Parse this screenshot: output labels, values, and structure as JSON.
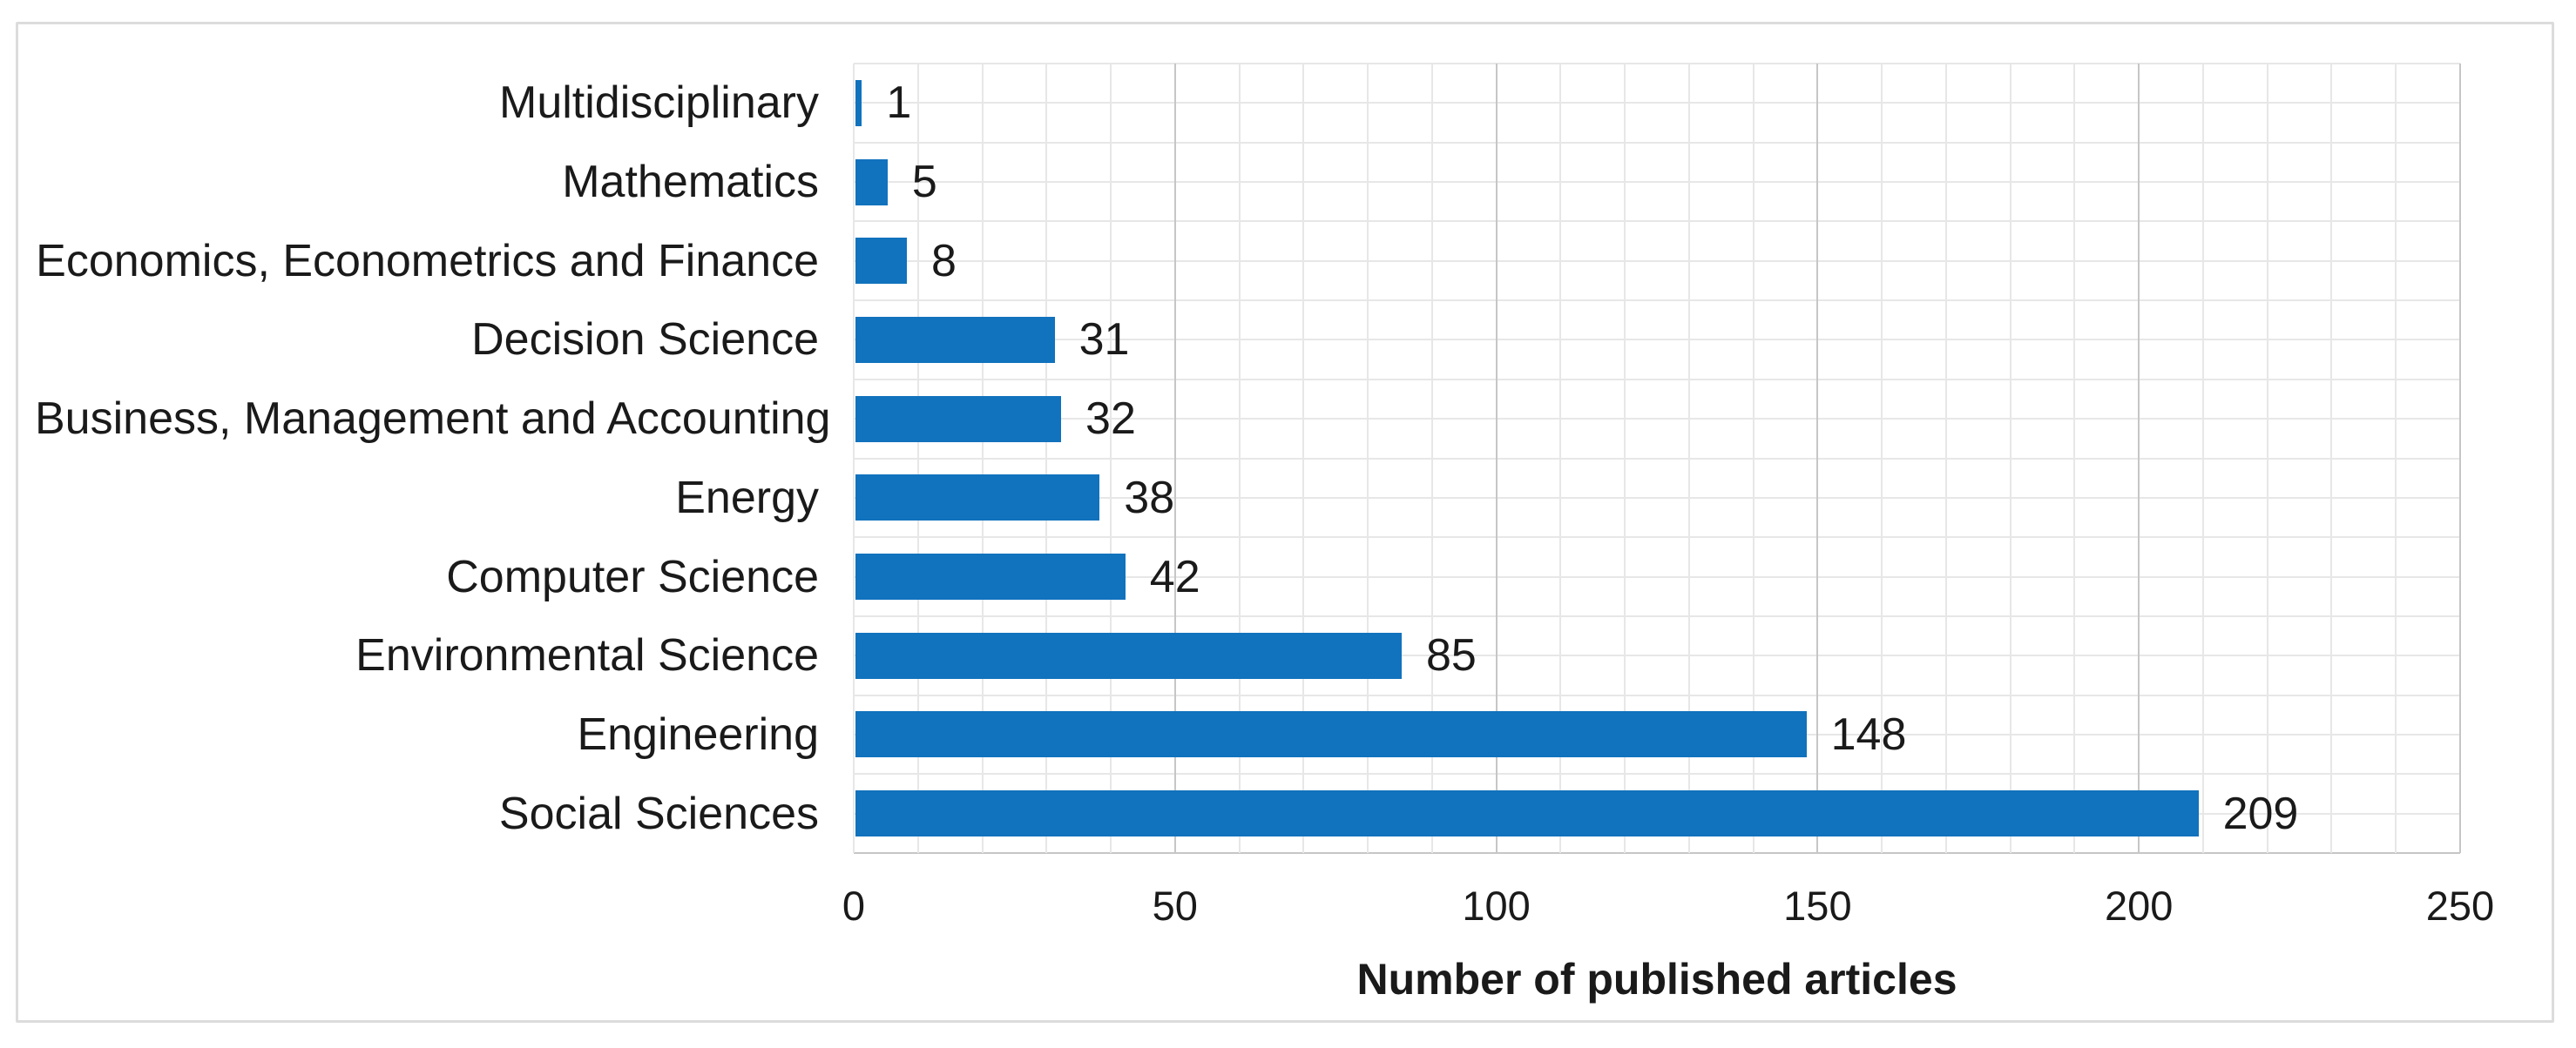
{
  "figure": {
    "background_color": "#ffffff",
    "border_color": "#dcdcdc"
  },
  "chart_data": {
    "type": "bar",
    "orientation": "horizontal",
    "title": "",
    "xlabel": "Number of published articles",
    "ylabel": "",
    "categories": [
      "Multidisciplinary",
      "Mathematics",
      "Economics, Econometrics and Finance",
      "Decision Science",
      "Business, Management and Accounting",
      "Energy",
      "Computer Science",
      "Environmental Science",
      "Engineering",
      "Social Sciences"
    ],
    "values": [
      1,
      5,
      8,
      31,
      32,
      38,
      42,
      85,
      148,
      209
    ],
    "data_labels": [
      "1",
      "5",
      "8",
      "31",
      "32",
      "38",
      "42",
      "85",
      "148",
      "209"
    ],
    "xlim": [
      0,
      250
    ],
    "xticks": [
      0,
      50,
      100,
      150,
      200,
      250
    ],
    "xtick_labels": [
      "0",
      "50",
      "100",
      "150",
      "200",
      "250"
    ],
    "grid": {
      "vertical_minor_step": 10,
      "vertical_major_step": 50,
      "horizontal_lines_per_category": 2,
      "minor_color": "#e7e7e7",
      "major_color": "#c6c6c6"
    },
    "legend": "none",
    "bar_color": "#1172bd",
    "text_color": "#1a1a1a"
  }
}
